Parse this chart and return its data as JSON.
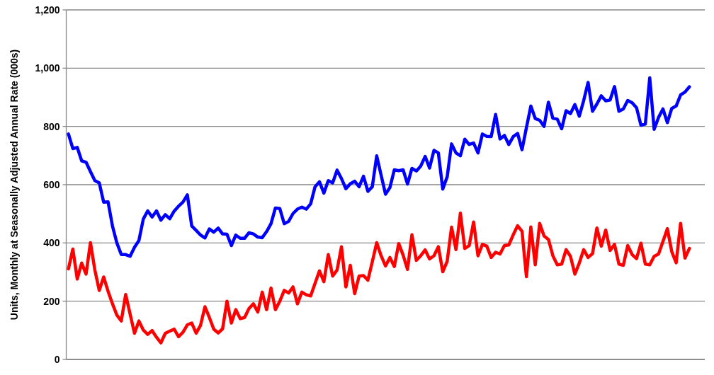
{
  "chart_data": {
    "type": "line",
    "ylabel": "Units, Monthly at Seasonally Adjusted Annual Rate (000s)",
    "categories": [
      null,
      null,
      null,
      null,
      null,
      null,
      null,
      null,
      null,
      null,
      null,
      null,
      null,
      null,
      null,
      null,
      null,
      null,
      null,
      null,
      null,
      null,
      null,
      null,
      null,
      null,
      null,
      null,
      null,
      null,
      null,
      null,
      null,
      null,
      null,
      null,
      null,
      null,
      null,
      null,
      null,
      null,
      null,
      null,
      null,
      null,
      null,
      null,
      null,
      null,
      null,
      null,
      null,
      null,
      null,
      null,
      null,
      null,
      null,
      null,
      null,
      null,
      null,
      null,
      null,
      null,
      null,
      null,
      null,
      null,
      null,
      null,
      null,
      null,
      null,
      null,
      null,
      null,
      null,
      null,
      null,
      null,
      null,
      null,
      null,
      null,
      null,
      null,
      null,
      null,
      null,
      null,
      null,
      null,
      null,
      null,
      null,
      null,
      null,
      null,
      null,
      null,
      null,
      null,
      null,
      null,
      null,
      null,
      null,
      null,
      null,
      null,
      null,
      null,
      null,
      null,
      null,
      null,
      null,
      null,
      null,
      null,
      null,
      null,
      null,
      null,
      null,
      null,
      null,
      null,
      null,
      null,
      null,
      null,
      null,
      null,
      null,
      null,
      null,
      null,
      null,
      null,
      null,
      null,
      null
    ],
    "ylim": [
      0,
      1200
    ],
    "yticks": [
      0,
      200,
      400,
      600,
      800,
      {
        "value": 1000,
        "label": "1,000"
      },
      {
        "value": 1200,
        "label": "1,200"
      }
    ],
    "grid": "y",
    "tick_labels": "y",
    "series": [
      {
        "color": "#0000ff",
        "values": [
          774,
          724,
          728,
          682,
          677,
          645,
          614,
          606,
          540,
          541,
          458,
          400,
          360,
          360,
          354,
          385,
          408,
          482,
          510,
          489,
          510,
          478,
          497,
          483,
          509,
          526,
          540,
          565,
          458,
          443,
          427,
          417,
          448,
          437,
          451,
          431,
          430,
          391,
          427,
          416,
          416,
          435,
          431,
          420,
          418,
          439,
          466,
          520,
          518,
          466,
          474,
          501,
          516,
          523,
          516,
          534,
          593,
          610,
          571,
          614,
          606,
          650,
          621,
          586,
          603,
          612,
          593,
          629,
          577,
          593,
          699,
          633,
          567,
          590,
          651,
          648,
          651,
          602,
          656,
          647,
          664,
          697,
          657,
          718,
          709,
          585,
          627,
          740,
          709,
          699,
          756,
          738,
          743,
          709,
          774,
          766,
          765,
          841,
          757,
          769,
          738,
          765,
          776,
          720,
          796,
          870,
          827,
          821,
          800,
          883,
          828,
          825,
          792,
          854,
          844,
          875,
          835,
          889,
          951,
          852,
          877,
          905,
          888,
          891,
          937,
          852,
          860,
          889,
          881,
          864,
          804,
          808,
          967,
          790,
          831,
          860,
          813,
          862,
          870,
          908,
          918,
          936,
          null,
          null,
          null
        ]
      },
      {
        "color": "#ff0000",
        "values": [
          311,
          379,
          276,
          331,
          293,
          401,
          307,
          237,
          283,
          234,
          191,
          152,
          132,
          223,
          156,
          90,
          132,
          101,
          86,
          99,
          76,
          57,
          90,
          97,
          104,
          78,
          93,
          119,
          125,
          90,
          117,
          181,
          144,
          104,
          91,
          105,
          200,
          125,
          171,
          140,
          144,
          175,
          191,
          163,
          231,
          171,
          245,
          171,
          200,
          237,
          228,
          249,
          191,
          231,
          222,
          218,
          261,
          304,
          267,
          360,
          286,
          307,
          387,
          249,
          323,
          226,
          286,
          288,
          272,
          335,
          401,
          356,
          321,
          350,
          319,
          398,
          358,
          309,
          428,
          340,
          356,
          376,
          345,
          356,
          387,
          301,
          337,
          454,
          377,
          502,
          381,
          391,
          472,
          356,
          395,
          389,
          350,
          368,
          362,
          391,
          393,
          428,
          459,
          440,
          284,
          455,
          325,
          467,
          424,
          412,
          356,
          325,
          327,
          377,
          354,
          293,
          331,
          377,
          350,
          363,
          451,
          389,
          444,
          374,
          395,
          327,
          323,
          391,
          360,
          346,
          399,
          327,
          325,
          354,
          362,
          405,
          449,
          370,
          332,
          467,
          348,
          381,
          null,
          null,
          null
        ]
      }
    ]
  }
}
